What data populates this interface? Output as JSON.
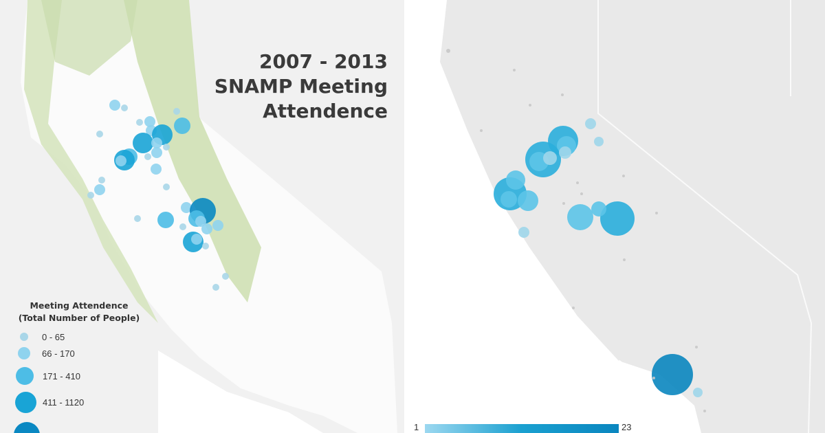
{
  "title": {
    "line1": "2007 - 2013",
    "line2": "SNAMP Meeting",
    "line3": "Attendence"
  },
  "legend": {
    "title_line1": "Meeting Attendence",
    "title_line2": "(Total Number of People)",
    "classes": [
      {
        "label": "0 - 65",
        "color": "#a9d6e8"
      },
      {
        "label": "66 - 170",
        "color": "#8fd3ee"
      },
      {
        "label": "171 - 410",
        "color": "#4dbde6"
      },
      {
        "label": "411 - 1120",
        "color": "#19a4d6"
      },
      {
        "label": "",
        "color": "#0a88c2"
      }
    ]
  },
  "scale": {
    "min": "1",
    "max": "23"
  },
  "colors": {
    "land_left": "#fbfbfb",
    "terrain_green": "#cfe0b4",
    "nevada": "#f1f1f1",
    "land_right": "#e9e9e9"
  }
}
